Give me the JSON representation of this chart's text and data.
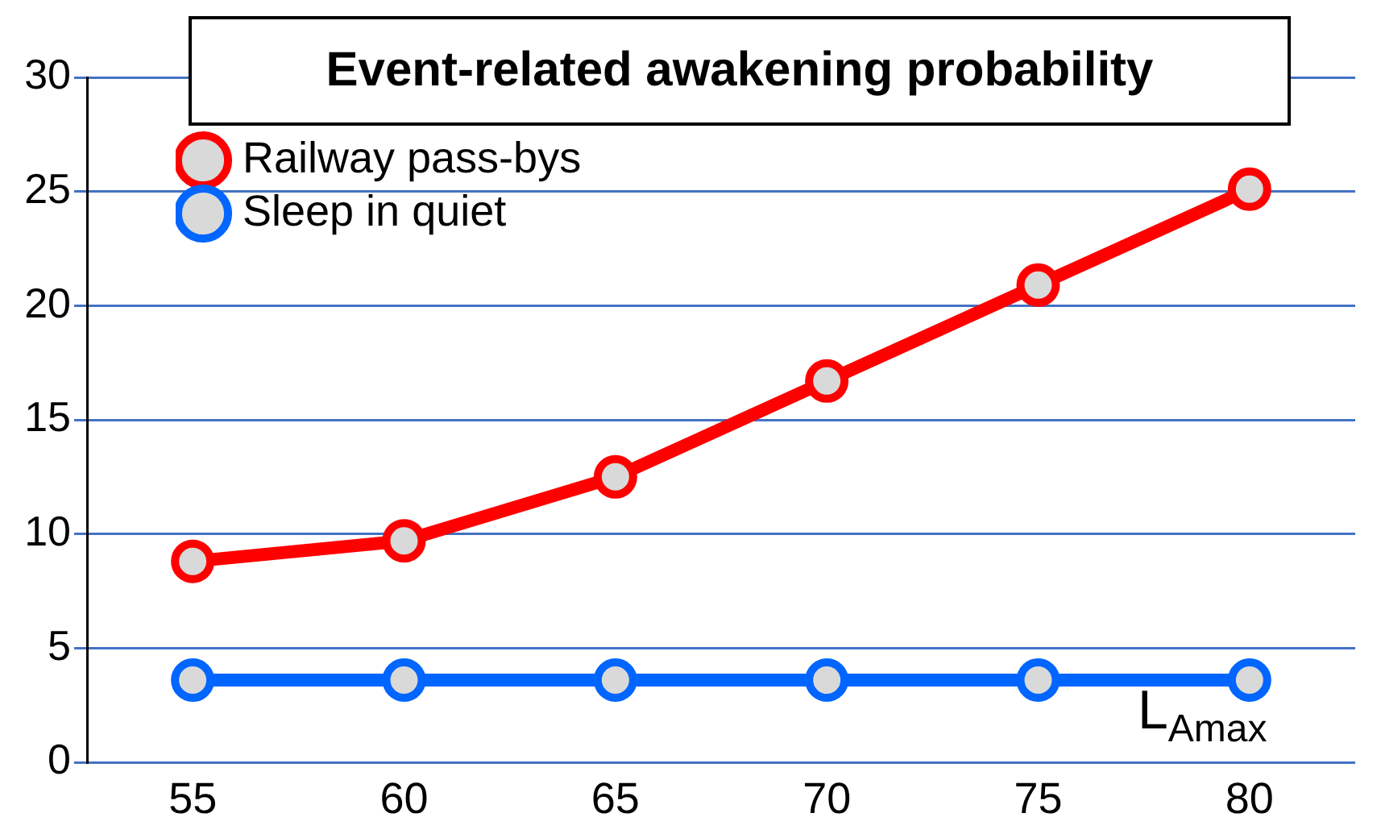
{
  "chart_data": {
    "type": "line",
    "title": "Event-related awakening probability",
    "xlabel": "L$_{Amax}$",
    "categories": [
      "55",
      "60",
      "65",
      "70",
      "75",
      "80"
    ],
    "series": [
      {
        "name": "Railway pass-bys",
        "color": "#ff0000",
        "values": [
          8.8,
          9.7,
          12.5,
          16.7,
          20.9,
          25.1
        ]
      },
      {
        "name": "Sleep in quiet",
        "color": "#0066ff",
        "values": [
          3.6,
          3.6,
          3.6,
          3.6,
          3.6,
          3.6
        ]
      }
    ],
    "ylim": [
      0,
      30
    ],
    "yticks": [
      0,
      5,
      10,
      15,
      20,
      25,
      30
    ],
    "grid": "y",
    "legend": "top left",
    "marker": "circle",
    "line_style": "solid"
  }
}
